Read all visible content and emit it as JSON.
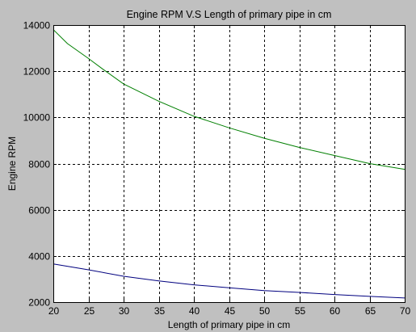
{
  "chart_data": {
    "type": "line",
    "title": "Engine RPM V.S Length of primary pipe in cm",
    "xlabel": "Length of primary pipe in cm",
    "ylabel": "Engine RPM",
    "xlim": [
      20,
      70
    ],
    "ylim": [
      2000,
      14000
    ],
    "xticks": [
      20,
      25,
      30,
      35,
      40,
      45,
      50,
      55,
      60,
      65,
      70
    ],
    "yticks": [
      2000,
      4000,
      6000,
      8000,
      10000,
      12000,
      14000
    ],
    "grid": true,
    "series": [
      {
        "color": "#007f00",
        "x": [
          20,
          22,
          25,
          27,
          30,
          35,
          40,
          45,
          50,
          55,
          60,
          65,
          70
        ],
        "y": [
          13800,
          13200,
          12550,
          12100,
          11450,
          10700,
          10050,
          9550,
          9100,
          8700,
          8350,
          8000,
          7750
        ]
      },
      {
        "color": "#00007f",
        "x": [
          20,
          25,
          30,
          35,
          40,
          45,
          50,
          55,
          60,
          65,
          70
        ],
        "y": [
          3650,
          3400,
          3120,
          2920,
          2750,
          2620,
          2500,
          2420,
          2330,
          2250,
          2180
        ]
      }
    ]
  }
}
